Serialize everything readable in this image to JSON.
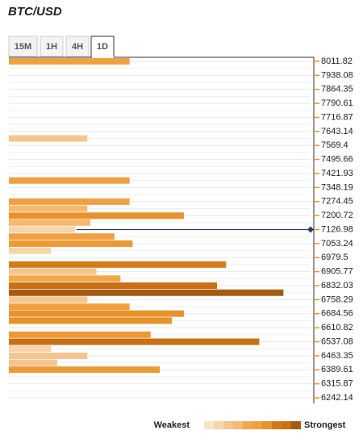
{
  "chart_data": {
    "type": "confluence",
    "title": "BTC/USD",
    "tabs": [
      "15M",
      "1H",
      "4H",
      "1D"
    ],
    "active_tab": 3,
    "ylim": [
      6242.14,
      8011.82
    ],
    "yticks": [
      8011.82,
      7938.08,
      7864.35,
      7790.61,
      7716.87,
      7643.14,
      7569.4,
      7495.66,
      7421.93,
      7348.19,
      7274.45,
      7200.72,
      7126.98,
      7053.24,
      6979.5,
      6905.77,
      6832.03,
      6758.29,
      6684.56,
      6610.82,
      6537.08,
      6463.35,
      6389.61,
      6315.87,
      6242.14
    ],
    "xlim": [
      0,
      10
    ],
    "current_price": 7126.98,
    "current_color": "#2b3a67",
    "levels": [
      8011.82,
      7606,
      7385,
      7274,
      7237,
      7200,
      7164,
      7127,
      7090,
      7053,
      7016,
      6943,
      6906,
      6869,
      6832,
      6795,
      6758,
      6721,
      6685,
      6648,
      6574,
      6537,
      6500,
      6463,
      6426,
      6390
    ],
    "values": [
      4.0,
      2.6,
      4.0,
      4.0,
      2.6,
      5.8,
      2.7,
      2.2,
      3.5,
      4.1,
      1.4,
      7.2,
      2.9,
      3.7,
      6.9,
      9.1,
      2.6,
      4.0,
      5.8,
      5.4,
      4.7,
      8.3,
      1.4,
      2.6,
      1.6,
      5.0
    ],
    "colors": [
      "#f0a040",
      "#f5c58f",
      "#f0a040",
      "#f0a040",
      "#f5b870",
      "#e8922a",
      "#f5b870",
      "#f8d4aa",
      "#f0a040",
      "#ec9a35",
      "#f8d4aa",
      "#d57a18",
      "#f5c58f",
      "#f0a848",
      "#c96f15",
      "#a65a10",
      "#f5c58f",
      "#f0a040",
      "#e8922a",
      "#e8922a",
      "#ec9a35",
      "#c96f15",
      "#f8d4aa",
      "#f5c58f",
      "#f5c58f",
      "#ec9a35"
    ],
    "legend_weak": "Weakest",
    "legend_strong": "Strongest"
  }
}
